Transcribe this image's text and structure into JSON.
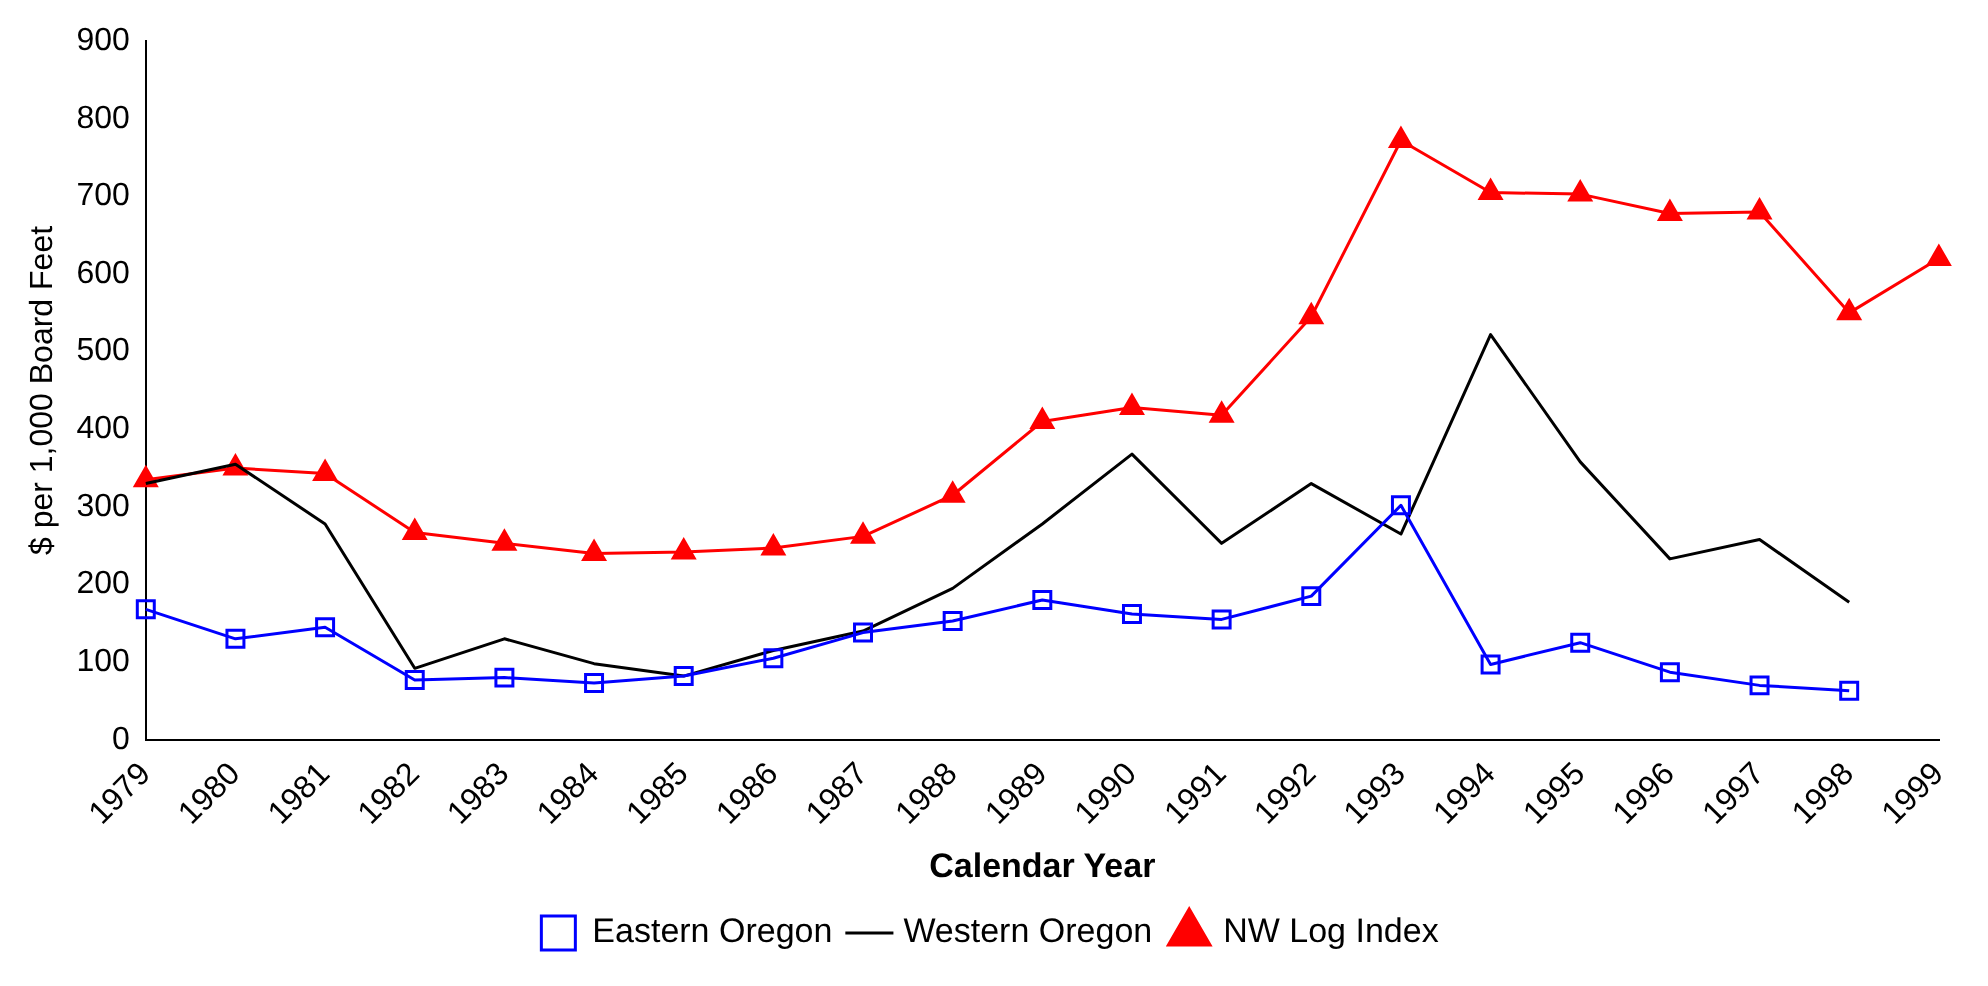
{
  "chart_data": {
    "type": "line",
    "xlabel": "Calendar Year",
    "ylabel": "$ per 1,000 Board Feet",
    "categories": [
      "1979",
      "1980",
      "1981",
      "1982",
      "1983",
      "1984",
      "1985",
      "1986",
      "1987",
      "1988",
      "1989",
      "1990",
      "1991",
      "1992",
      "1993",
      "1994",
      "1995",
      "1996",
      "1997",
      "1998",
      "1999"
    ],
    "ylim": [
      0,
      900
    ],
    "yticks": [
      0,
      100,
      200,
      300,
      400,
      500,
      600,
      700,
      800,
      900
    ],
    "grid": false,
    "legend": "bottom",
    "line_style": "solid",
    "series": [
      {
        "name": "Eastern Oregon",
        "color": "#0000ff",
        "marker": "square",
        "values": [
          168,
          130,
          145,
          77,
          80,
          73,
          82,
          105,
          138,
          153,
          180,
          162,
          155,
          185,
          302,
          97,
          125,
          87,
          70,
          63,
          null
        ]
      },
      {
        "name": "Western Oregon",
        "color": "#000000",
        "marker": "none",
        "values": [
          330,
          355,
          278,
          92,
          130,
          98,
          82,
          115,
          140,
          195,
          278,
          368,
          253,
          330,
          265,
          522,
          358,
          233,
          258,
          177,
          null
        ]
      },
      {
        "name": "NW Log Index",
        "color": "#ff0000",
        "marker": "triangle",
        "values": [
          335,
          350,
          343,
          267,
          253,
          240,
          242,
          247,
          262,
          315,
          410,
          428,
          418,
          545,
          772,
          705,
          703,
          678,
          680,
          550,
          620
        ]
      }
    ]
  }
}
